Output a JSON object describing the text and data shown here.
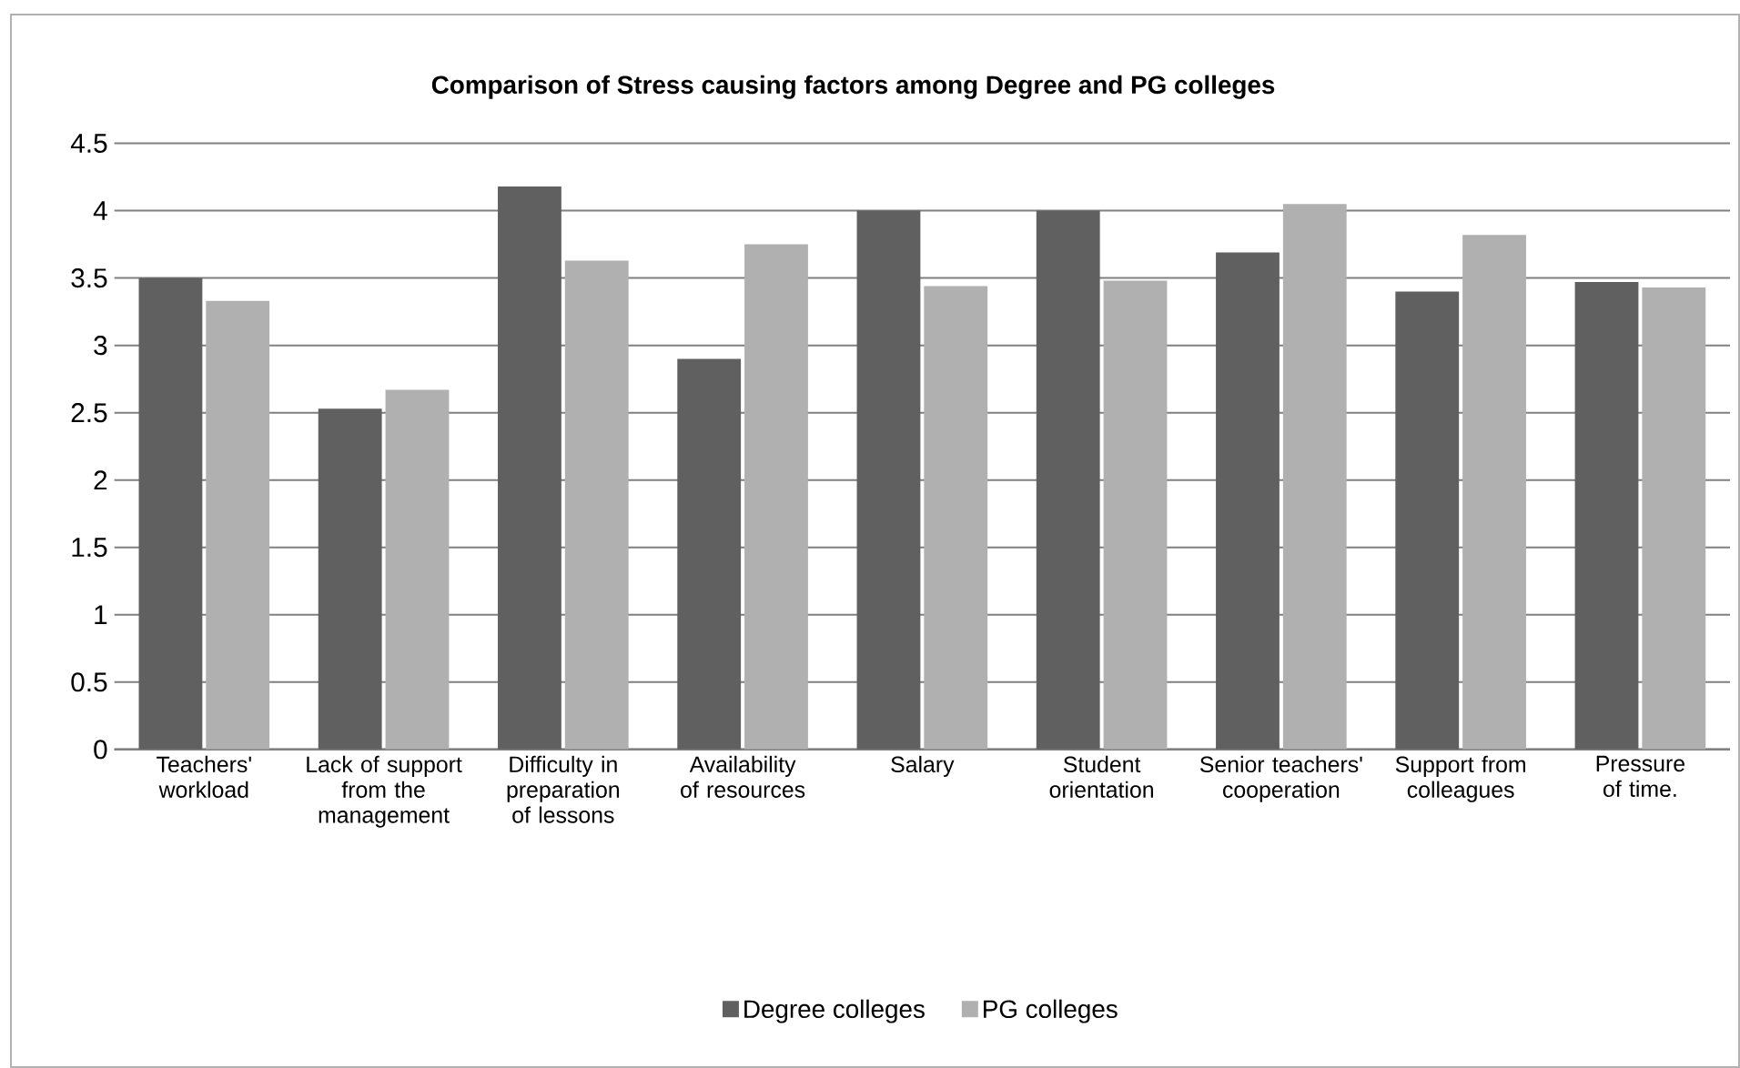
{
  "chart_data": {
    "type": "bar",
    "title": "Comparison of Stress causing factors among Degree and PG colleges",
    "categories": [
      "Teachers' workload",
      "Lack of support from the management",
      "Difficulty in preparation of lessons",
      "Availability of resources",
      "Salary",
      "Student orientation",
      "Senior teachers' cooperation",
      "Support from colleagues",
      "Pressure of time."
    ],
    "series": [
      {
        "name": "Degree colleges",
        "color": "#606060",
        "values": [
          3.5,
          2.53,
          4.18,
          2.9,
          4.0,
          4.0,
          3.69,
          3.4,
          3.47
        ]
      },
      {
        "name": "PG colleges",
        "color": "#b0b0b0",
        "values": [
          3.33,
          2.67,
          3.63,
          3.75,
          3.44,
          3.48,
          4.05,
          3.82,
          3.43
        ]
      }
    ],
    "ylim": [
      0,
      4.5
    ],
    "yticks": [
      0,
      0.5,
      1,
      1.5,
      2,
      2.5,
      3,
      3.5,
      4,
      4.5
    ],
    "grid": "y",
    "legend": "bottom"
  }
}
